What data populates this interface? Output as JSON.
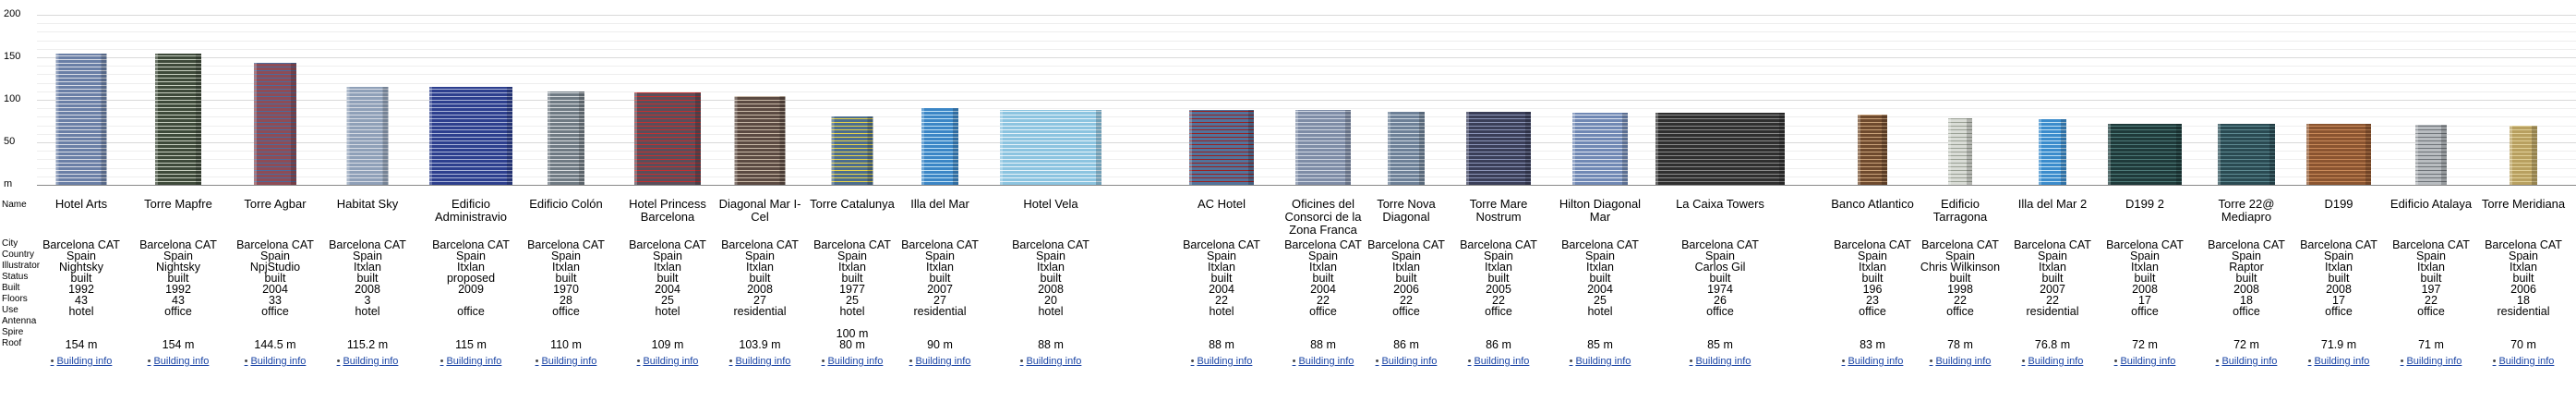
{
  "axis": {
    "ticks": [
      "200",
      "150",
      "100",
      "50",
      "m"
    ]
  },
  "row_labels": [
    "Name",
    "City",
    "Country",
    "Illustrator",
    "Status",
    "Built",
    "Floors",
    "Use",
    "Antenna",
    "Spire",
    "Roof"
  ],
  "link_label": "Building info",
  "buildings": [
    {
      "name": "Hotel Arts",
      "city": "Barcelona CAT",
      "country": "Spain",
      "illustrator": "Nightsky",
      "status": "built",
      "built": "1992",
      "floors": "43",
      "use": "hotel",
      "antenna": "",
      "spire": "",
      "roof": "154 m",
      "color": "#6a7fa6",
      "accent": "#d9dde6",
      "height": 154,
      "width": 55
    },
    {
      "name": "Torre Mapfre",
      "city": "Barcelona CAT",
      "country": "Spain",
      "illustrator": "Nightsky",
      "status": "built",
      "built": "1992",
      "floors": "43",
      "use": "office",
      "antenna": "",
      "spire": "",
      "roof": "154 m",
      "color": "#3e4a3a",
      "accent": "#c7cfc0",
      "height": 154,
      "width": 50
    },
    {
      "name": "Torre Agbar",
      "city": "Barcelona CAT",
      "country": "Spain",
      "illustrator": "NpjStudio",
      "status": "built",
      "built": "2004",
      "floors": "33",
      "use": "office",
      "antenna": "",
      "spire": "",
      "roof": "144.5 m",
      "color": "#8e4c56",
      "accent": "#4c6b9a",
      "height": 144,
      "width": 46
    },
    {
      "name": "Habitat Sky",
      "city": "Barcelona CAT",
      "country": "Spain",
      "illustrator": "Itxlan",
      "status": "built",
      "built": "2008",
      "floors": "3",
      "use": "hotel",
      "antenna": "",
      "spire": "",
      "roof": "115.2 m",
      "color": "#8fa0b8",
      "accent": "#d6dbe4",
      "height": 115,
      "width": 45
    },
    {
      "name": "Edificio Administravio",
      "city": "Barcelona CAT",
      "country": "Spain",
      "illustrator": "Itxlan",
      "status": "proposed",
      "built": "2009",
      "floors": "",
      "use": "office",
      "antenna": "",
      "spire": "",
      "roof": "115 m",
      "color": "#2d3f8e",
      "accent": "#aab4d8",
      "height": 115,
      "width": 90
    },
    {
      "name": "Edificio Colón",
      "city": "Barcelona CAT",
      "country": "Spain",
      "illustrator": "Itxlan",
      "status": "built",
      "built": "1970",
      "floors": "28",
      "use": "office",
      "antenna": "",
      "spire": "",
      "roof": "110 m",
      "color": "#6f7a83",
      "accent": "#d9dde0",
      "height": 110,
      "width": 40
    },
    {
      "name": "Hotel Princess Barcelona",
      "city": "Barcelona CAT",
      "country": "Spain",
      "illustrator": "Itxlan",
      "status": "built",
      "built": "2004",
      "floors": "25",
      "use": "hotel",
      "antenna": "",
      "spire": "",
      "roof": "109 m",
      "color": "#5a4e5a",
      "accent": "#c43030",
      "height": 109,
      "width": 72
    },
    {
      "name": "Diagonal Mar I-Cel",
      "city": "Barcelona CAT",
      "country": "Spain",
      "illustrator": "Itxlan",
      "status": "built",
      "built": "2008",
      "floors": "27",
      "use": "residential",
      "antenna": "",
      "spire": "",
      "roof": "103.9 m",
      "color": "#5b4a42",
      "accent": "#c9b9a8",
      "height": 104,
      "width": 55
    },
    {
      "name": "Torre Catalunya",
      "city": "Barcelona CAT",
      "country": "Spain",
      "illustrator": "Itxlan",
      "status": "built",
      "built": "1977",
      "floors": "25",
      "use": "hotel",
      "antenna": "",
      "spire": "100 m",
      "roof": "80 m",
      "color": "#4c6d8e",
      "accent": "#e8d44a",
      "height": 80,
      "width": 45
    },
    {
      "name": "Illa del Mar",
      "city": "Barcelona CAT",
      "country": "Spain",
      "illustrator": "Itxlan",
      "status": "built",
      "built": "2007",
      "floors": "27",
      "use": "residential",
      "antenna": "",
      "spire": "",
      "roof": "90 m",
      "color": "#3b86c6",
      "accent": "#bfe0f5",
      "height": 90,
      "width": 40
    },
    {
      "name": "Hotel Vela",
      "city": "Barcelona CAT",
      "country": "Spain",
      "illustrator": "Itxlan",
      "status": "built",
      "built": "2008",
      "floors": "20",
      "use": "hotel",
      "antenna": "",
      "spire": "",
      "roof": "88 m",
      "color": "#8cc4e0",
      "accent": "#e6f3fa",
      "height": 88,
      "width": 110
    },
    {
      "name": "AC Hotel",
      "city": "Barcelona CAT",
      "country": "Spain",
      "illustrator": "Itxlan",
      "status": "built",
      "built": "2004",
      "floors": "22",
      "use": "hotel",
      "antenna": "",
      "spire": "",
      "roof": "88 m",
      "color": "#52739a",
      "accent": "#9a2020",
      "height": 88,
      "width": 70
    },
    {
      "name": "Oficines del Consorci de la Zona Franca",
      "city": "Barcelona CAT",
      "country": "Spain",
      "illustrator": "Itxlan",
      "status": "built",
      "built": "2004",
      "floors": "22",
      "use": "office",
      "antenna": "",
      "spire": "",
      "roof": "88 m",
      "color": "#7e8ca6",
      "accent": "#d0d7e3",
      "height": 88,
      "width": 60
    },
    {
      "name": "Torre Nova Diagonal",
      "city": "Barcelona CAT",
      "country": "Spain",
      "illustrator": "Itxlan",
      "status": "built",
      "built": "2006",
      "floors": "22",
      "use": "office",
      "antenna": "",
      "spire": "",
      "roof": "86 m",
      "color": "#6d8097",
      "accent": "#ccd6e0",
      "height": 86,
      "width": 40
    },
    {
      "name": "Torre Mare Nostrum",
      "city": "Barcelona CAT",
      "country": "Spain",
      "illustrator": "Itxlan",
      "status": "built",
      "built": "2005",
      "floors": "22",
      "use": "office",
      "antenna": "",
      "spire": "",
      "roof": "86 m",
      "color": "#3a3e58",
      "accent": "#8c95b8",
      "height": 86,
      "width": 70
    },
    {
      "name": "Hilton Diagonal Mar",
      "city": "Barcelona CAT",
      "country": "Spain",
      "illustrator": "Itxlan",
      "status": "built",
      "built": "2004",
      "floors": "25",
      "use": "hotel",
      "antenna": "",
      "spire": "",
      "roof": "85 m",
      "color": "#7088b4",
      "accent": "#dfe5f0",
      "height": 85,
      "width": 60
    },
    {
      "name": "La Caixa Towers",
      "city": "Barcelona CAT",
      "country": "Spain",
      "illustrator": "Carlos Gil",
      "status": "built",
      "built": "1974",
      "floors": "26",
      "use": "office",
      "antenna": "",
      "spire": "",
      "roof": "85 m",
      "color": "#2f2f2f",
      "accent": "#8a8a8a",
      "height": 85,
      "width": 140
    },
    {
      "name": "Banco Atlantico",
      "city": "Barcelona CAT",
      "country": "Spain",
      "illustrator": "Itxlan",
      "status": "built",
      "built": "196",
      "floors": "23",
      "use": "office",
      "antenna": "",
      "spire": "",
      "roof": "83 m",
      "color": "#6e4a2e",
      "accent": "#c9a27a",
      "height": 83,
      "width": 32
    },
    {
      "name": "Edificio Tarragona",
      "city": "Barcelona CAT",
      "country": "Spain",
      "illustrator": "Chris Wilkinson",
      "status": "built",
      "built": "1998",
      "floors": "22",
      "use": "office",
      "antenna": "",
      "spire": "",
      "roof": "78 m",
      "color": "#d9dcd6",
      "accent": "#9aa095",
      "height": 78,
      "width": 26
    },
    {
      "name": "Illa del Mar 2",
      "city": "Barcelona CAT",
      "country": "Spain",
      "illustrator": "Itxlan",
      "status": "built",
      "built": "2007",
      "floors": "22",
      "use": "residential",
      "antenna": "",
      "spire": "",
      "roof": "76.8 m",
      "color": "#3b8ccc",
      "accent": "#c2e2f6",
      "height": 77,
      "width": 30
    },
    {
      "name": "D199 2",
      "city": "Barcelona CAT",
      "country": "Spain",
      "illustrator": "Itxlan",
      "status": "built",
      "built": "2008",
      "floors": "17",
      "use": "office",
      "antenna": "",
      "spire": "",
      "roof": "72 m",
      "color": "#1f3a3a",
      "accent": "#4e7a78",
      "height": 72,
      "width": 80
    },
    {
      "name": "Torre 22@ Mediapro",
      "city": "Barcelona CAT",
      "country": "Spain",
      "illustrator": "Raptor",
      "status": "built",
      "built": "2008",
      "floors": "18",
      "use": "office",
      "antenna": "",
      "spire": "",
      "roof": "72 m",
      "color": "#2a4a52",
      "accent": "#5f8a92",
      "height": 72,
      "width": 62
    },
    {
      "name": "D199",
      "city": "Barcelona CAT",
      "country": "Spain",
      "illustrator": "Itxlan",
      "status": "built",
      "built": "2008",
      "floors": "17",
      "use": "office",
      "antenna": "",
      "spire": "",
      "roof": "71.9 m",
      "color": "#8a5430",
      "accent": "#c98a5a",
      "height": 72,
      "width": 70
    },
    {
      "name": "Edificio Atalaya",
      "city": "Barcelona CAT",
      "country": "Spain",
      "illustrator": "Itxlan",
      "status": "built",
      "built": "197",
      "floors": "22",
      "use": "office",
      "antenna": "",
      "spire": "",
      "roof": "71 m",
      "color": "#b8bcc0",
      "accent": "#6e7378",
      "height": 71,
      "width": 34
    },
    {
      "name": "Torre Meridiana",
      "city": "Barcelona CAT",
      "country": "Spain",
      "illustrator": "Itxlan",
      "status": "built",
      "built": "2006",
      "floors": "18",
      "use": "residential",
      "antenna": "",
      "spire": "",
      "roof": "70 m",
      "color": "#b8a060",
      "accent": "#e0cf98",
      "height": 70,
      "width": 30
    }
  ]
}
